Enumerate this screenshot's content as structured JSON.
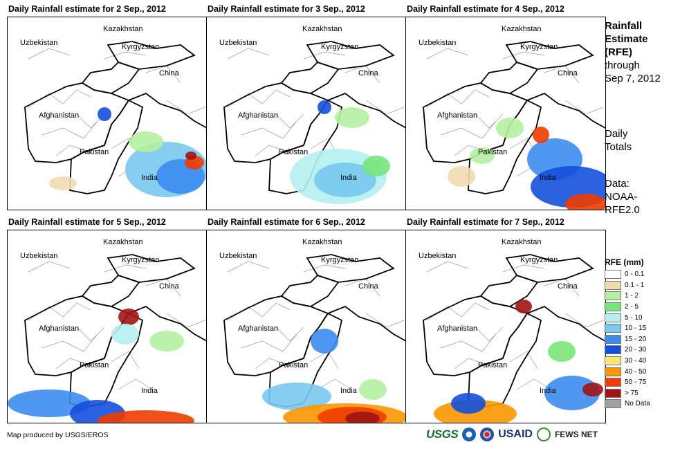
{
  "panels": [
    {
      "title": "Daily Rainfall estimate for 2 Sep., 2012"
    },
    {
      "title": "Daily Rainfall estimate for 3 Sep., 2012"
    },
    {
      "title": "Daily Rainfall estimate for 4 Sep., 2012"
    },
    {
      "title": "Daily Rainfall estimate for 5 Sep., 2012"
    },
    {
      "title": "Daily Rainfall estimate for 6 Sep., 2012"
    },
    {
      "title": "Daily Rainfall estimate for 7 Sep., 2012"
    }
  ],
  "map_labels": {
    "kazakhstan": "Kazakhstan",
    "uzbekistan": "Uzbekistan",
    "kyrgyzstan": "Kyrgyzstan",
    "china": "China",
    "afghanistan": "Afghanistan",
    "pakistan": "Pakistan",
    "india": "India"
  },
  "side": {
    "title_bold_1": "Rainfall",
    "title_bold_2": "Estimate",
    "title_bold_3": "(RFE)",
    "through": "through",
    "date": "Sep 7, 2012",
    "daily_1": "Daily",
    "daily_2": "Totals",
    "data_1": "Data:",
    "data_2": "NOAA-",
    "data_3": "RFE2.0"
  },
  "legend": {
    "title": "RFE (mm)",
    "items": [
      {
        "label": "0 - 0.1",
        "color": "#ffffff"
      },
      {
        "label": "0.1 - 1",
        "color": "#f0dcb4"
      },
      {
        "label": "1 - 2",
        "color": "#b4f0a0"
      },
      {
        "label": "2 - 5",
        "color": "#78e678"
      },
      {
        "label": "5 - 10",
        "color": "#b4f0f0"
      },
      {
        "label": "10 - 15",
        "color": "#78c8f0"
      },
      {
        "label": "15 - 20",
        "color": "#3c8cf0"
      },
      {
        "label": "20 - 30",
        "color": "#1450dc"
      },
      {
        "label": "30 - 40",
        "color": "#fae678"
      },
      {
        "label": "40 - 50",
        "color": "#fa9600"
      },
      {
        "label": "50 - 75",
        "color": "#f03c00"
      },
      {
        "label": "> 75",
        "color": "#a01414"
      },
      {
        "label": "No Data",
        "color": "#a0a0a0"
      }
    ]
  },
  "credit": "Map produced by USGS/EROS",
  "logos": {
    "usgs": "USGS",
    "usaid": "USAID",
    "fews": "FEWS NET"
  }
}
